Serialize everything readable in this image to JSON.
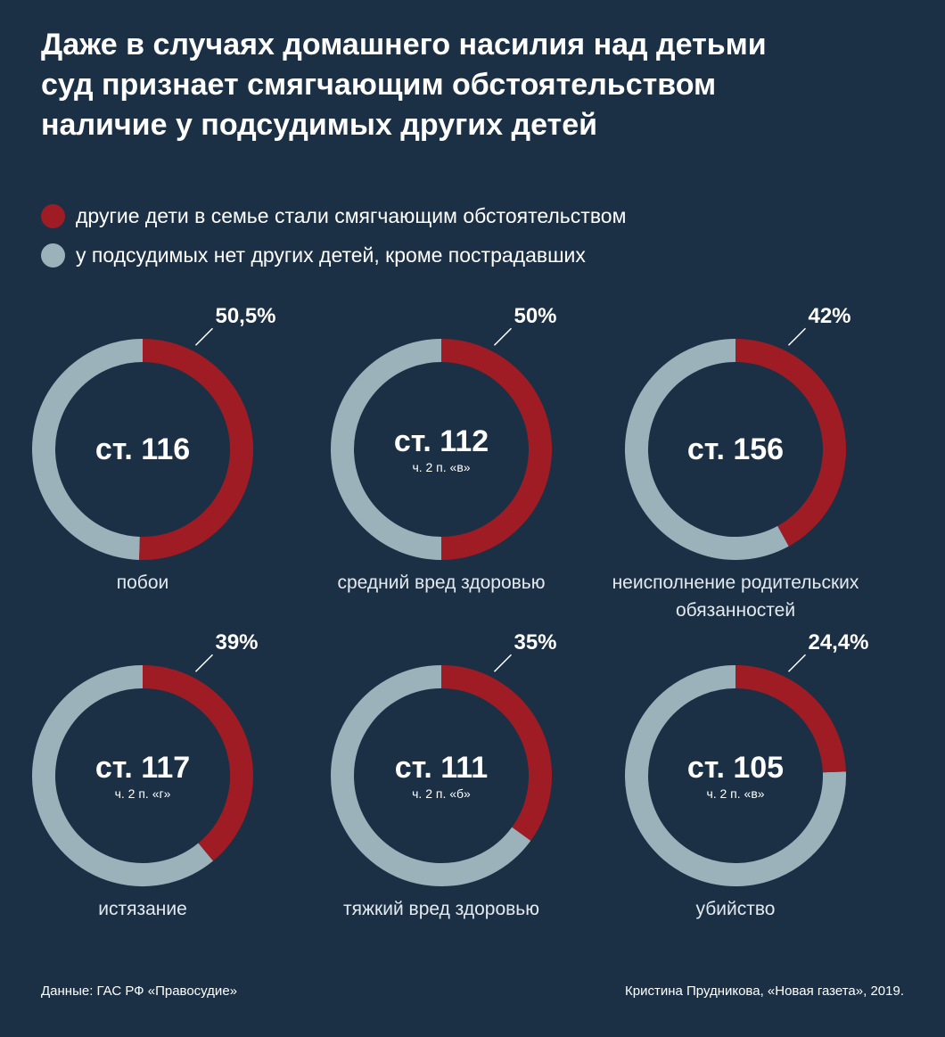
{
  "title_lines": [
    "Даже в случаях домашнего насилия над детьми",
    "суд признает смягчающим обстоятельством",
    "наличие у подсудимых других детей"
  ],
  "legend": [
    {
      "label": "другие дети в семье стали смягчающим обстоятельством",
      "color": "#a01c24"
    },
    {
      "label": "у подсудимых нет других детей, кроме пострадавших",
      "color": "#9bb2bb"
    }
  ],
  "colors": {
    "accent": "#a01c24",
    "rest": "#9bb2bb",
    "background": "#1b3045"
  },
  "chart_data": {
    "type": "pie",
    "variant": "donut",
    "series": [
      {
        "name": "другие дети в семье стали смягчающим обстоятельством"
      },
      {
        "name": "у подсудимых нет других детей, кроме пострадавших"
      }
    ],
    "charts": [
      {
        "article": "ст. 116",
        "subarticle": "",
        "percent": 50.5,
        "percent_label": "50,5%",
        "caption_lines": [
          "побои"
        ]
      },
      {
        "article": "ст. 112",
        "subarticle": "ч. 2 п. «в»",
        "percent": 50,
        "percent_label": "50%",
        "caption_lines": [
          "средний вред здоровью"
        ]
      },
      {
        "article": "ст. 156",
        "subarticle": "",
        "percent": 42,
        "percent_label": "42%",
        "caption_lines": [
          "неисполнение родительских",
          "обязанностей"
        ]
      },
      {
        "article": "ст. 117",
        "subarticle": "ч. 2 п. «г»",
        "percent": 39,
        "percent_label": "39%",
        "caption_lines": [
          "истязание"
        ]
      },
      {
        "article": "ст. 111",
        "subarticle": "ч. 2 п. «б»",
        "percent": 35,
        "percent_label": "35%",
        "caption_lines": [
          "тяжкий вред здоровью"
        ]
      },
      {
        "article": "ст. 105",
        "subarticle": "ч. 2 п. «в»",
        "percent": 24.4,
        "percent_label": "24,4%",
        "caption_lines": [
          "убийство"
        ]
      }
    ]
  },
  "footer": {
    "source": "Данные: ГАС РФ «Правосудие»",
    "credit": "Кристина Прудникова, «Новая газета», 2019."
  }
}
